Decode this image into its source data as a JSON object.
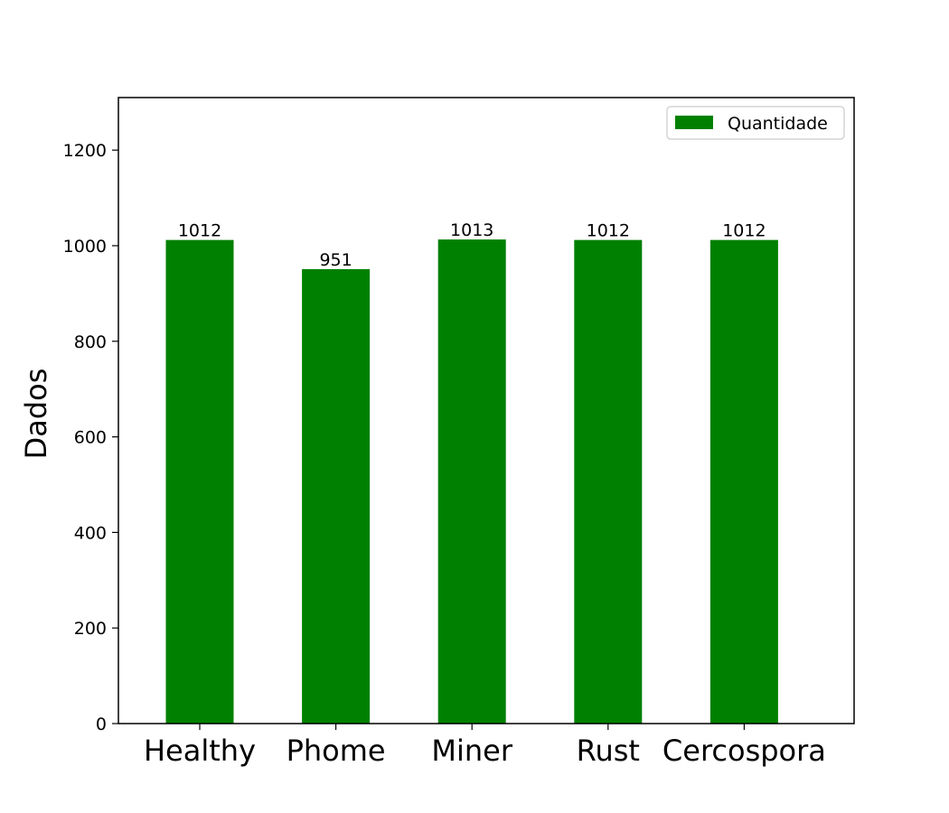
{
  "chart_data": {
    "type": "bar",
    "categories": [
      "Healthy",
      "Phome",
      "Miner",
      "Rust",
      "Cercospora"
    ],
    "series": [
      {
        "name": "Quantidade",
        "values": [
          1012,
          951,
          1013,
          1012,
          1012
        ],
        "color": "#008000"
      }
    ],
    "xlabel": "",
    "ylabel": "Dados",
    "ylim": [
      0,
      1310
    ],
    "yticks": [
      0,
      200,
      400,
      600,
      800,
      1000,
      1200
    ],
    "data_labels": [
      "1012",
      "951",
      "1013",
      "1012",
      "1012"
    ],
    "grid": false,
    "legend_position": "top-right"
  }
}
